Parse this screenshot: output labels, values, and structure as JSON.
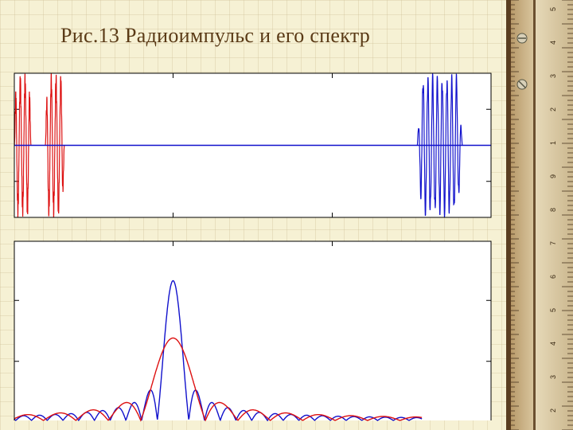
{
  "slide": {
    "title": "Рис.13 Радиоимпульс и его спектр"
  },
  "colors": {
    "red": "#dd1111",
    "blue": "#1111cc",
    "axis": "#000000",
    "plot_bg": "#ffffff"
  },
  "ruler": {
    "tick_labels": [
      "5",
      "4",
      "3",
      "2",
      "1",
      "9",
      "8",
      "7",
      "6",
      "5",
      "4",
      "3",
      "2"
    ]
  },
  "chart_data": [
    {
      "type": "line",
      "panel": "time-domain",
      "title": "",
      "xlabel": "",
      "ylabel": "",
      "xlim": [
        0,
        1000
      ],
      "ylim": [
        -1,
        1
      ],
      "series": [
        {
          "color": "#dd1111",
          "segments": [
            [
              0,
              35
            ],
            [
              65,
              105
            ]
          ],
          "amplitude": 1.0,
          "period": 10,
          "baseline": 0
        },
        {
          "color": "#1111cc",
          "segments": [
            [
              845,
              940
            ]
          ],
          "amplitude": 1.0,
          "period": 10,
          "baseline": 0,
          "baseline_span": [
            0,
            1000
          ]
        }
      ]
    },
    {
      "type": "line",
      "panel": "frequency-spectrum",
      "title": "",
      "xlabel": "",
      "ylabel": "",
      "xlim": [
        0,
        1000
      ],
      "ylim": [
        0,
        1
      ],
      "series": [
        {
          "color": "#1111cc",
          "center": 333,
          "peak": 0.78,
          "lobe_width": 33,
          "range": [
            0,
            855
          ]
        },
        {
          "color": "#dd1111",
          "center": 333,
          "peak": 0.46,
          "lobe_width": 68,
          "range": [
            0,
            855
          ]
        }
      ]
    }
  ]
}
